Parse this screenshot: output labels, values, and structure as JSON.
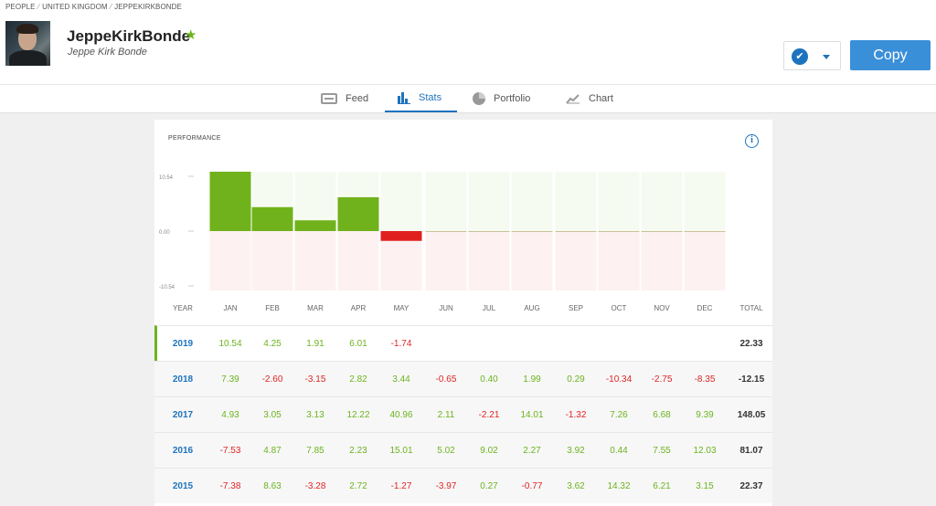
{
  "breadcrumb": [
    "PEOPLE",
    "UNITED KINGDOM",
    "JEPPEKIRKBONDE"
  ],
  "profile": {
    "username": "JeppeKirkBonde",
    "full_name": "Jeppe Kirk Bonde"
  },
  "actions": {
    "copy_label": "Copy"
  },
  "tabs": [
    {
      "label": "Feed",
      "icon": "feed-icon",
      "active": false
    },
    {
      "label": "Stats",
      "icon": "bar-chart-icon",
      "active": true
    },
    {
      "label": "Portfolio",
      "icon": "pie-chart-icon",
      "active": false
    },
    {
      "label": "Chart",
      "icon": "line-chart-icon",
      "active": false
    }
  ],
  "performance": {
    "title": "PERFORMANCE",
    "header": [
      "YEAR",
      "JAN",
      "FEB",
      "MAR",
      "APR",
      "MAY",
      "JUN",
      "JUL",
      "AUG",
      "SEP",
      "OCT",
      "NOV",
      "DEC",
      "TOTAL"
    ],
    "rows": [
      {
        "year": "2019",
        "months": [
          "10.54",
          "4.25",
          "1.91",
          "6.01",
          "-1.74",
          "",
          "",
          "",
          "",
          "",
          "",
          ""
        ],
        "total": "22.33"
      },
      {
        "year": "2018",
        "months": [
          "7.39",
          "-2.60",
          "-3.15",
          "2.82",
          "3.44",
          "-0.65",
          "0.40",
          "1.99",
          "0.29",
          "-10.34",
          "-2.75",
          "-8.35"
        ],
        "total": "-12.15"
      },
      {
        "year": "2017",
        "months": [
          "4.93",
          "3.05",
          "3.13",
          "12.22",
          "40.96",
          "2.11",
          "-2.21",
          "14.01",
          "-1.32",
          "7.26",
          "6.68",
          "9.39"
        ],
        "total": "148.05"
      },
      {
        "year": "2016",
        "months": [
          "-7.53",
          "4.87",
          "7.85",
          "2.23",
          "15.01",
          "5.02",
          "9.02",
          "2.27",
          "3.92",
          "0.44",
          "7.55",
          "12.03"
        ],
        "total": "81.07"
      },
      {
        "year": "2015",
        "months": [
          "-7.38",
          "8.63",
          "-3.28",
          "2.72",
          "-1.27",
          "-3.97",
          "0.27",
          "-0.77",
          "3.62",
          "14.32",
          "6.21",
          "3.15"
        ],
        "total": "22.37"
      }
    ]
  },
  "chart_data": {
    "type": "bar",
    "categories": [
      "JAN",
      "FEB",
      "MAR",
      "APR",
      "MAY",
      "JUN",
      "JUL",
      "AUG",
      "SEP",
      "OCT",
      "NOV",
      "DEC"
    ],
    "values": [
      10.54,
      4.25,
      1.91,
      6.01,
      -1.74,
      0,
      0,
      0,
      0,
      0,
      0,
      0
    ],
    "ylim": [
      -10.54,
      10.54
    ],
    "yticks": [
      "10.54",
      "0.00",
      "-10.54"
    ],
    "colors": {
      "positive": "#70b21b",
      "negative": "#e0201f",
      "pos_bg": "#f6fbf1",
      "neg_bg": "#fdf1f1"
    }
  }
}
